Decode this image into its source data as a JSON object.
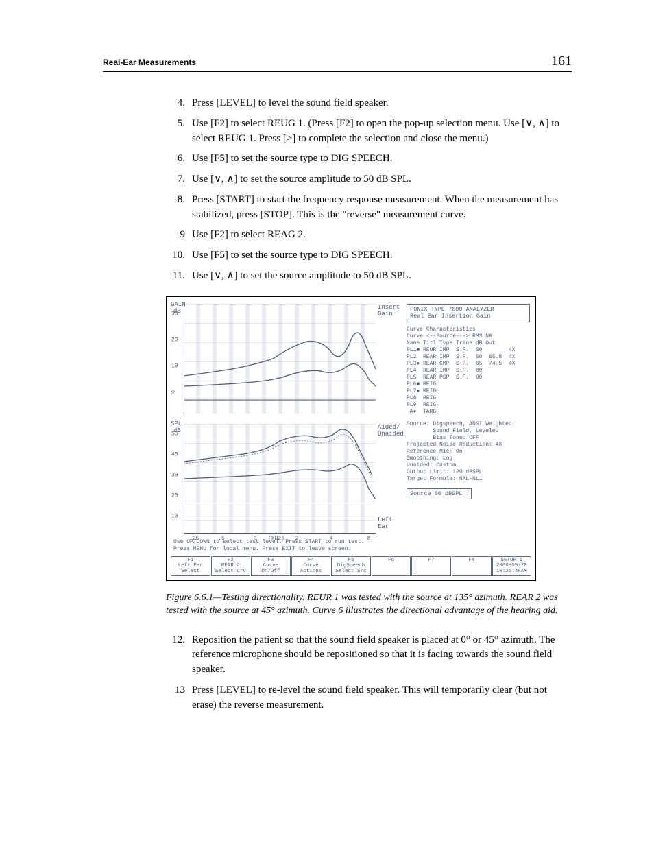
{
  "header": {
    "title": "Real-Ear Measurements",
    "page_number": "161"
  },
  "items_a": [
    {
      "n": "4.",
      "t": "Press [LEVEL] to level the sound field speaker."
    },
    {
      "n": "5.",
      "t": "Use [F2] to select REUG 1. (Press [F2] to open the pop-up selection menu. Use [∨, ∧] to select REUG 1. Press [>] to complete the selection and close the menu.)"
    },
    {
      "n": "6.",
      "t": "Use [F5] to set the source type to DIG SPEECH."
    },
    {
      "n": "7.",
      "t": "Use [∨, ∧] to set the source amplitude to 50 dB SPL."
    },
    {
      "n": "8.",
      "t": "Press [START] to start the frequency response measurement. When the measurement has stabilized, press [STOP]. This is the \"reverse\" measurement curve."
    },
    {
      "n": "9",
      "t": "Use [F2] to select REAG 2."
    },
    {
      "n": "10.",
      "t": "Use [F5] to set the source type to DIG SPEECH."
    },
    {
      "n": "11.",
      "t": "Use [∨, ∧] to set the source amplitude to 50 dB SPL."
    }
  ],
  "items_b": [
    {
      "n": "12.",
      "t": "Reposition the patient so that the sound field speaker is placed at 0° or 45° azimuth. The reference microphone should be repositioned so that it is facing towards the sound field speaker."
    },
    {
      "n": "13",
      "t": "Press [LEVEL] to re-level the sound field speaker. This will temporarily clear (but not erase) the reverse measurement."
    }
  ],
  "caption": "Figure 6.6.1—Testing directionality. REUR 1 was tested with the source at 135° azimuth. REAR 2 was tested with the source at 45° azimuth. Curve 6 illustrates the directional advantage of the hearing aid.",
  "figure": {
    "gain": {
      "label_top": "GAIN",
      "label_unit": "dB",
      "y_ticks": [
        "30",
        "20",
        "10",
        "0"
      ],
      "right_labels": [
        "Insert",
        "Gain"
      ]
    },
    "spl": {
      "label_top": "SPL",
      "label_unit": "dB",
      "y_ticks": [
        "50",
        "40",
        "30",
        "20",
        "10"
      ],
      "right_labels": [
        "Aided/",
        "Unaided",
        "Left",
        "Ear"
      ]
    },
    "x_ticks": [
      ".25",
      ".5",
      "1",
      "(kHz)",
      "2",
      "4",
      "8"
    ],
    "info_title": [
      "FONIX TYPE 7000 ANALYZER",
      "Real Ear Insertion Gain"
    ],
    "curve_header": "      Curve Characteristics\n     Curve  <--Source--->  RMS  NR\nName Titl Type Trans dB   Out",
    "curve_rows": [
      "PL1■ REUR IMP  S.F.  50        4X",
      "PL2  REAR IMP  S.F.  50  65.8  4X",
      "PL3● REAR CMP  S.F.  65  74.5  4X",
      "PL4  REAR IMP  S.F.  80",
      "PL5  REAR PSP  S.F.  90",
      "PL6■ REIG",
      "PL7● REIG",
      "PL8  REIG",
      "PL9  REIG",
      " A●  TARG"
    ],
    "settings": [
      "Source: Digspeech, ANSI Weighted",
      "        Sound Field, Leveled",
      "        Bias Tone: OFF",
      "Projected Noise Reduction: 4X",
      "Reference Mic: On",
      "Smoothing: Log",
      "Unaided: Custom",
      "Output Limit: 120 dBSPL",
      "Target Formula: NAL-NL1"
    ],
    "source_box": "Source  50 dBSPL",
    "bottom_instructions": [
      "Use UP/DOWN to select test level. Press START to run test.",
      "Press MENU for local menu. Press EXIT to leave screen."
    ],
    "fkeys": [
      {
        "k": "F1",
        "l1": "Left Ear",
        "l2": "Select"
      },
      {
        "k": "F2",
        "l1": "REAR 2",
        "l2": "Select Crv"
      },
      {
        "k": "F3",
        "l1": "Curve",
        "l2": "On/Off"
      },
      {
        "k": "F4",
        "l1": "Curve",
        "l2": "Actions"
      },
      {
        "k": "F5",
        "l1": "DigSpeech",
        "l2": "Select Src"
      },
      {
        "k": "F6",
        "l1": "",
        "l2": ""
      },
      {
        "k": "F7",
        "l1": "",
        "l2": ""
      },
      {
        "k": "F8",
        "l1": "",
        "l2": ""
      },
      {
        "k": "",
        "l1": "SETUP 1",
        "l2": "2006-09-20\n10:25:48AM"
      }
    ],
    "colors": {
      "line": "#4a5a7a",
      "grid": "#9aa8c0"
    }
  }
}
